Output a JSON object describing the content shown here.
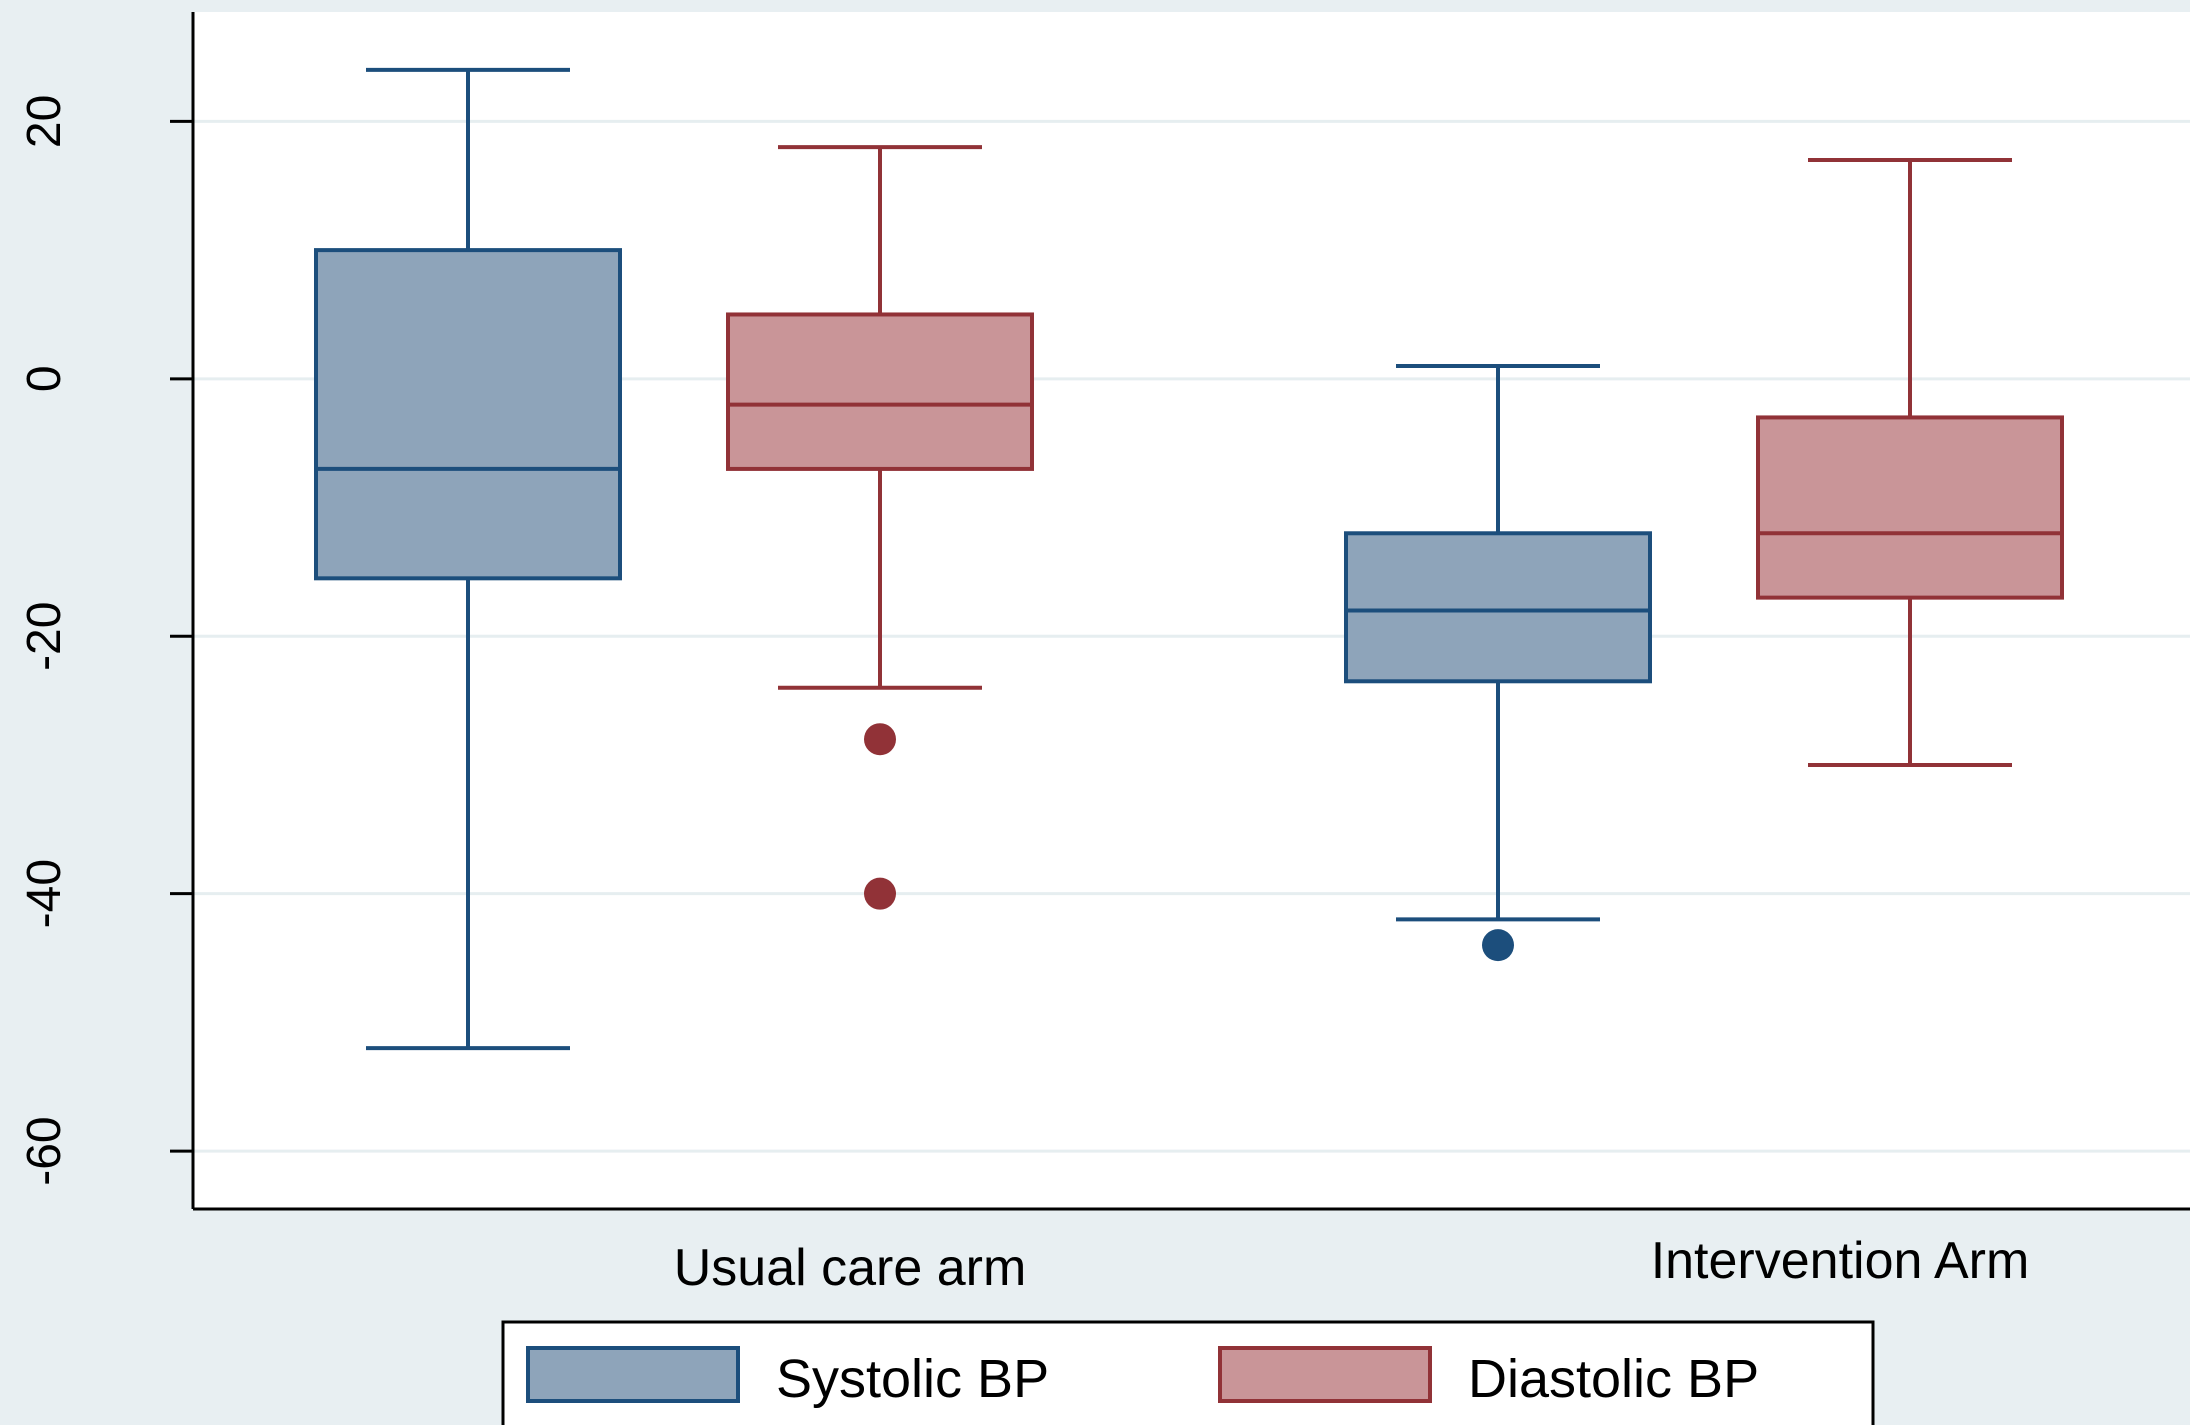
{
  "chart_data": {
    "type": "box",
    "title": "",
    "xlabel": "",
    "ylabel": "",
    "ylim": [
      -64.5,
      28.5
    ],
    "yticks": [
      20,
      0,
      -20,
      -40,
      -60
    ],
    "ytick_labels": [
      "20",
      "0",
      "-20",
      "-40",
      "-60"
    ],
    "grid": true,
    "legend_position": "bottom",
    "categories": [
      "Usual care arm",
      "Intervention Arm"
    ],
    "series": [
      {
        "name": "Systolic BP",
        "color": "#8ea4ba",
        "edge_color": "#1c4e7c",
        "boxes": [
          {
            "whisker_low": -52,
            "q1": -15.5,
            "median": -7,
            "q3": 10,
            "whisker_high": 24,
            "outliers": []
          },
          {
            "whisker_low": -42,
            "q1": -23.5,
            "median": -18,
            "q3": -12,
            "whisker_high": 1,
            "outliers": [
              -44
            ]
          }
        ]
      },
      {
        "name": "Diastolic BP",
        "color": "#c99598",
        "edge_color": "#913237",
        "boxes": [
          {
            "whisker_low": -24,
            "q1": -7,
            "median": -2,
            "q3": 5,
            "whisker_high": 18,
            "outliers": [
              -28,
              -40
            ]
          },
          {
            "whisker_low": -30,
            "q1": -17,
            "median": -12,
            "q3": -3,
            "whisker_high": 17,
            "outliers": []
          }
        ]
      }
    ]
  }
}
